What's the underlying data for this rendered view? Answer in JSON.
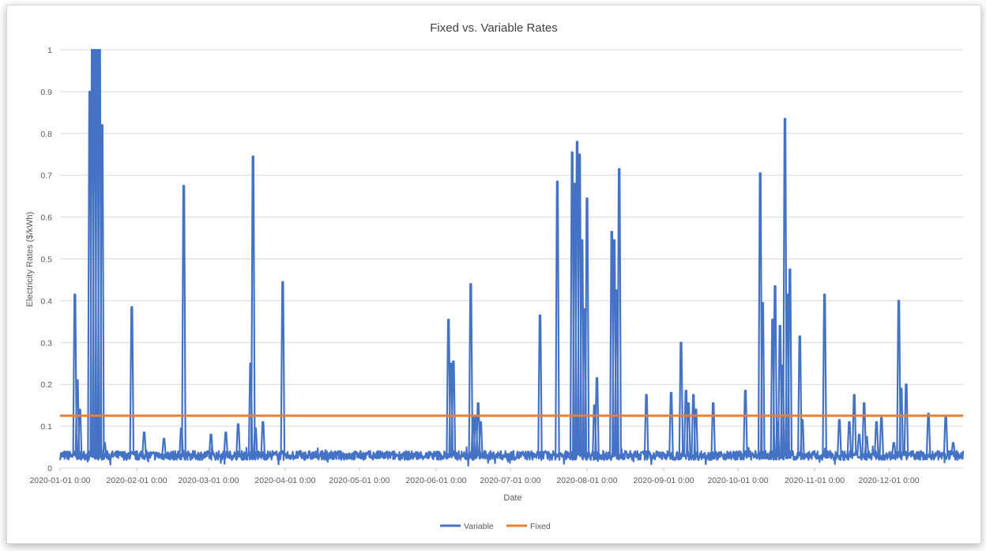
{
  "chart_data": {
    "type": "line",
    "title": "Fixed vs. Variable Rates",
    "xlabel": "Date",
    "ylabel": "Electricity Rates ($/kWh)",
    "xlim": [
      "2020-01-01",
      "2020-12-31"
    ],
    "ylim": [
      0,
      1
    ],
    "grid": true,
    "legend_position": "bottom",
    "x_tick_labels": [
      "2020-01-01 0:00",
      "2020-02-01 0:00",
      "2020-03-01 0:00",
      "2020-04-01 0:00",
      "2020-05-01 0:00",
      "2020-06-01 0:00",
      "2020-07-01 0:00",
      "2020-08-01 0:00",
      "2020-09-01 0:00",
      "2020-10-01 0:00",
      "2020-11-01 0:00",
      "2020-12-01 0:00"
    ],
    "y_tick_labels": [
      "0",
      "0.1",
      "0.2",
      "0.3",
      "0.4",
      "0.5",
      "0.6",
      "0.7",
      "0.8",
      "0.9",
      "1"
    ],
    "series": [
      {
        "name": "Variable",
        "color": "#4472C4",
        "base_level": 0.03,
        "peaks": [
          {
            "x": "2020-01-07",
            "y": 0.415
          },
          {
            "x": "2020-01-08",
            "y": 0.21
          },
          {
            "x": "2020-01-09",
            "y": 0.14
          },
          {
            "x": "2020-01-13",
            "y": 0.9
          },
          {
            "x": "2020-01-14",
            "y": 1.0
          },
          {
            "x": "2020-01-15",
            "y": 1.0
          },
          {
            "x": "2020-01-16",
            "y": 1.0
          },
          {
            "x": "2020-01-17",
            "y": 1.0
          },
          {
            "x": "2020-01-18",
            "y": 0.82
          },
          {
            "x": "2020-01-19",
            "y": 0.06
          },
          {
            "x": "2020-01-30",
            "y": 0.385
          },
          {
            "x": "2020-02-04",
            "y": 0.085
          },
          {
            "x": "2020-02-12",
            "y": 0.07
          },
          {
            "x": "2020-02-19",
            "y": 0.095
          },
          {
            "x": "2020-02-20",
            "y": 0.675
          },
          {
            "x": "2020-03-02",
            "y": 0.08
          },
          {
            "x": "2020-03-08",
            "y": 0.085
          },
          {
            "x": "2020-03-13",
            "y": 0.105
          },
          {
            "x": "2020-03-18",
            "y": 0.25
          },
          {
            "x": "2020-03-19",
            "y": 0.745
          },
          {
            "x": "2020-03-20",
            "y": 0.095
          },
          {
            "x": "2020-03-23",
            "y": 0.11
          },
          {
            "x": "2020-03-31",
            "y": 0.445
          },
          {
            "x": "2020-06-06",
            "y": 0.355
          },
          {
            "x": "2020-06-07",
            "y": 0.25
          },
          {
            "x": "2020-06-08",
            "y": 0.255
          },
          {
            "x": "2020-06-15",
            "y": 0.44
          },
          {
            "x": "2020-06-16",
            "y": 0.12
          },
          {
            "x": "2020-06-17",
            "y": 0.125
          },
          {
            "x": "2020-06-18",
            "y": 0.155
          },
          {
            "x": "2020-06-19",
            "y": 0.11
          },
          {
            "x": "2020-07-13",
            "y": 0.365
          },
          {
            "x": "2020-07-20",
            "y": 0.685
          },
          {
            "x": "2020-07-26",
            "y": 0.755
          },
          {
            "x": "2020-07-27",
            "y": 0.68
          },
          {
            "x": "2020-07-28",
            "y": 0.78
          },
          {
            "x": "2020-07-29",
            "y": 0.75
          },
          {
            "x": "2020-07-30",
            "y": 0.545
          },
          {
            "x": "2020-07-31",
            "y": 0.38
          },
          {
            "x": "2020-08-01",
            "y": 0.645
          },
          {
            "x": "2020-08-04",
            "y": 0.15
          },
          {
            "x": "2020-08-05",
            "y": 0.215
          },
          {
            "x": "2020-08-11",
            "y": 0.565
          },
          {
            "x": "2020-08-12",
            "y": 0.545
          },
          {
            "x": "2020-08-13",
            "y": 0.425
          },
          {
            "x": "2020-08-14",
            "y": 0.715
          },
          {
            "x": "2020-08-25",
            "y": 0.175
          },
          {
            "x": "2020-09-04",
            "y": 0.18
          },
          {
            "x": "2020-09-08",
            "y": 0.3
          },
          {
            "x": "2020-09-10",
            "y": 0.185
          },
          {
            "x": "2020-09-11",
            "y": 0.155
          },
          {
            "x": "2020-09-13",
            "y": 0.175
          },
          {
            "x": "2020-09-14",
            "y": 0.14
          },
          {
            "x": "2020-09-21",
            "y": 0.155
          },
          {
            "x": "2020-10-04",
            "y": 0.185
          },
          {
            "x": "2020-10-10",
            "y": 0.705
          },
          {
            "x": "2020-10-11",
            "y": 0.395
          },
          {
            "x": "2020-10-15",
            "y": 0.355
          },
          {
            "x": "2020-10-16",
            "y": 0.435
          },
          {
            "x": "2020-10-17",
            "y": 0.11
          },
          {
            "x": "2020-10-18",
            "y": 0.34
          },
          {
            "x": "2020-10-19",
            "y": 0.245
          },
          {
            "x": "2020-10-20",
            "y": 0.835
          },
          {
            "x": "2020-10-21",
            "y": 0.415
          },
          {
            "x": "2020-10-22",
            "y": 0.475
          },
          {
            "x": "2020-10-26",
            "y": 0.315
          },
          {
            "x": "2020-10-27",
            "y": 0.115
          },
          {
            "x": "2020-11-05",
            "y": 0.415
          },
          {
            "x": "2020-11-11",
            "y": 0.115
          },
          {
            "x": "2020-11-15",
            "y": 0.11
          },
          {
            "x": "2020-11-17",
            "y": 0.175
          },
          {
            "x": "2020-11-19",
            "y": 0.08
          },
          {
            "x": "2020-11-21",
            "y": 0.155
          },
          {
            "x": "2020-11-22",
            "y": 0.075
          },
          {
            "x": "2020-11-26",
            "y": 0.11
          },
          {
            "x": "2020-11-28",
            "y": 0.12
          },
          {
            "x": "2020-12-03",
            "y": 0.06
          },
          {
            "x": "2020-12-05",
            "y": 0.4
          },
          {
            "x": "2020-12-06",
            "y": 0.19
          },
          {
            "x": "2020-12-08",
            "y": 0.2
          },
          {
            "x": "2020-12-17",
            "y": 0.13
          },
          {
            "x": "2020-12-24",
            "y": 0.125
          },
          {
            "x": "2020-12-27",
            "y": 0.06
          }
        ]
      },
      {
        "name": "Fixed",
        "color": "#ED7D31",
        "value": 0.125
      }
    ]
  }
}
